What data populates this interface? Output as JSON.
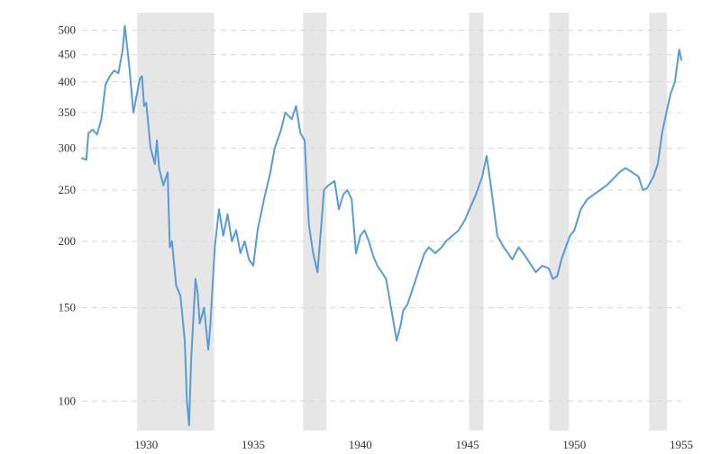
{
  "chart_data": {
    "type": "line",
    "title": "",
    "xlabel": "",
    "ylabel": "",
    "y_scale": "log",
    "xlim": [
      1927.0,
      1955.0
    ],
    "ylim": [
      88,
      540
    ],
    "grid": "horizontal dashed",
    "x_ticks": [
      1930,
      1935,
      1940,
      1945,
      1950,
      1955
    ],
    "x_tick_labels": [
      "1930",
      "1935",
      "1940",
      "1945",
      "1950",
      "1955"
    ],
    "y_ticks": [
      100,
      150,
      200,
      250,
      300,
      350,
      400,
      450,
      500
    ],
    "y_tick_labels": [
      "100",
      "150",
      "200",
      "250",
      "300",
      "350",
      "400",
      "450",
      "500"
    ],
    "recession_bands": [
      [
        1929.58,
        1933.17
      ],
      [
        1937.33,
        1938.42
      ],
      [
        1945.08,
        1945.75
      ],
      [
        1948.83,
        1949.75
      ],
      [
        1953.5,
        1954.33
      ]
    ],
    "colors": {
      "line": "#5b9bd5",
      "recession_band": "#e6e6e6",
      "grid": "#d6d6d6"
    },
    "series": [
      {
        "x": [
          1927.0,
          1927.2,
          1927.3,
          1927.5,
          1927.7,
          1927.9,
          1928.1,
          1928.3,
          1928.5,
          1928.7,
          1928.9,
          1929.0,
          1929.2,
          1929.4,
          1929.6,
          1929.7,
          1929.8,
          1929.9,
          1930.0,
          1930.2,
          1930.4,
          1930.5,
          1930.6,
          1930.8,
          1931.0,
          1931.1,
          1931.2,
          1931.4,
          1931.6,
          1931.8,
          1931.9,
          1932.0,
          1932.1,
          1932.3,
          1932.4,
          1932.5,
          1932.7,
          1932.9,
          1933.0,
          1933.2,
          1933.4,
          1933.6,
          1933.8,
          1934.0,
          1934.2,
          1934.4,
          1934.6,
          1934.8,
          1935.0,
          1935.2,
          1935.5,
          1935.8,
          1936.0,
          1936.3,
          1936.5,
          1936.8,
          1937.0,
          1937.2,
          1937.4,
          1937.6,
          1937.8,
          1938.0,
          1938.2,
          1938.3,
          1938.5,
          1938.8,
          1939.0,
          1939.2,
          1939.4,
          1939.6,
          1939.8,
          1940.0,
          1940.2,
          1940.4,
          1940.6,
          1940.8,
          1941.0,
          1941.2,
          1941.5,
          1941.7,
          1941.9,
          1942.0,
          1942.2,
          1942.5,
          1942.8,
          1943.0,
          1943.2,
          1943.5,
          1943.8,
          1944.0,
          1944.3,
          1944.6,
          1944.9,
          1945.1,
          1945.4,
          1945.7,
          1945.9,
          1946.1,
          1946.4,
          1946.7,
          1946.9,
          1947.1,
          1947.4,
          1947.7,
          1948.0,
          1948.2,
          1948.5,
          1948.8,
          1949.0,
          1949.2,
          1949.4,
          1949.6,
          1949.8,
          1950.0,
          1950.3,
          1950.6,
          1950.9,
          1951.2,
          1951.5,
          1951.8,
          1952.1,
          1952.4,
          1952.7,
          1953.0,
          1953.2,
          1953.4,
          1953.7,
          1953.9,
          1954.1,
          1954.3,
          1954.5,
          1954.7,
          1954.9,
          1955.0
        ],
        "y": [
          287,
          285,
          320,
          325,
          318,
          340,
          395,
          410,
          420,
          415,
          460,
          510,
          430,
          350,
          385,
          405,
          410,
          360,
          365,
          300,
          280,
          310,
          275,
          255,
          270,
          195,
          200,
          165,
          158,
          130,
          100,
          90,
          120,
          170,
          160,
          140,
          150,
          125,
          140,
          195,
          230,
          205,
          225,
          200,
          210,
          190,
          200,
          185,
          180,
          210,
          240,
          270,
          300,
          325,
          350,
          340,
          360,
          320,
          310,
          215,
          190,
          175,
          220,
          250,
          255,
          260,
          230,
          245,
          250,
          240,
          190,
          205,
          210,
          200,
          188,
          180,
          175,
          170,
          145,
          130,
          140,
          148,
          152,
          165,
          180,
          190,
          195,
          190,
          195,
          200,
          205,
          210,
          220,
          230,
          245,
          265,
          290,
          255,
          205,
          195,
          190,
          185,
          195,
          188,
          180,
          175,
          180,
          178,
          170,
          172,
          185,
          195,
          205,
          210,
          230,
          240,
          245,
          250,
          255,
          262,
          270,
          275,
          270,
          265,
          250,
          252,
          265,
          280,
          320,
          350,
          380,
          400,
          460,
          440
        ]
      }
    ]
  }
}
